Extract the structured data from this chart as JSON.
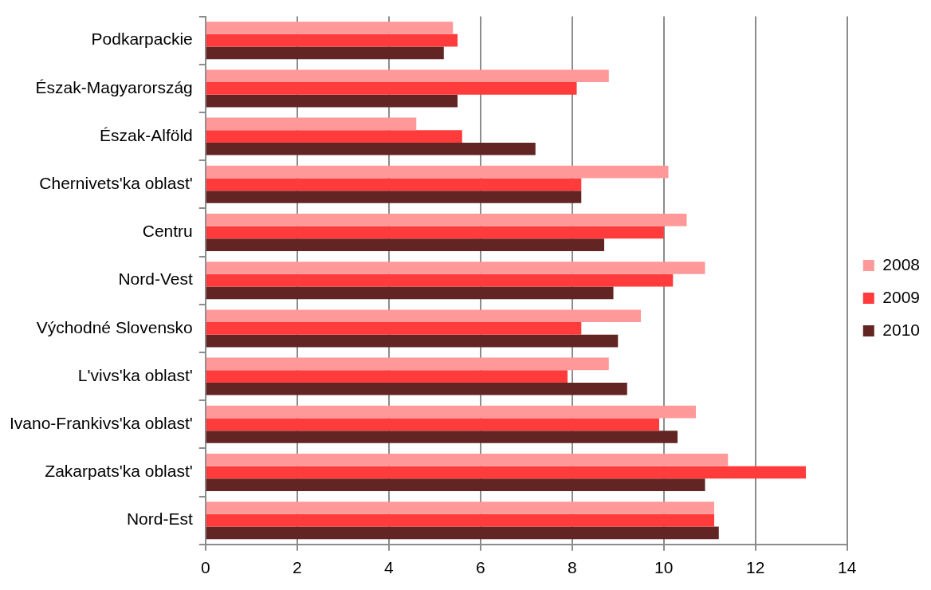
{
  "chart_data": {
    "type": "bar",
    "orientation": "horizontal",
    "categories": [
      "Podkarpackie",
      "Észak-Magyarország",
      "Észak-Alföld",
      "Chernivets'ka oblast'",
      "Centru",
      "Nord-Vest",
      "Východné Slovensko",
      "L'vivs'ka oblast'",
      "Ivano-Frankivs'ka oblast'",
      "Zakarpats'ka oblast'",
      "Nord-Est"
    ],
    "series": [
      {
        "name": "2008",
        "color": "#ff9999",
        "values": [
          5.4,
          8.8,
          4.6,
          10.1,
          10.5,
          10.9,
          9.5,
          8.8,
          10.7,
          11.4,
          11.1
        ]
      },
      {
        "name": "2009",
        "color": "#ff3b3b",
        "values": [
          5.5,
          8.1,
          5.6,
          8.2,
          10.0,
          10.2,
          8.2,
          7.9,
          9.9,
          13.1,
          11.1
        ]
      },
      {
        "name": "2010",
        "color": "#632523",
        "values": [
          5.2,
          5.5,
          7.2,
          8.2,
          8.7,
          8.9,
          9.0,
          9.2,
          10.3,
          10.9,
          11.2
        ]
      }
    ],
    "xlim": [
      0,
      14
    ],
    "xticks": [
      0,
      2,
      4,
      6,
      8,
      10,
      12,
      14
    ],
    "grid": "x",
    "legend": "right"
  }
}
